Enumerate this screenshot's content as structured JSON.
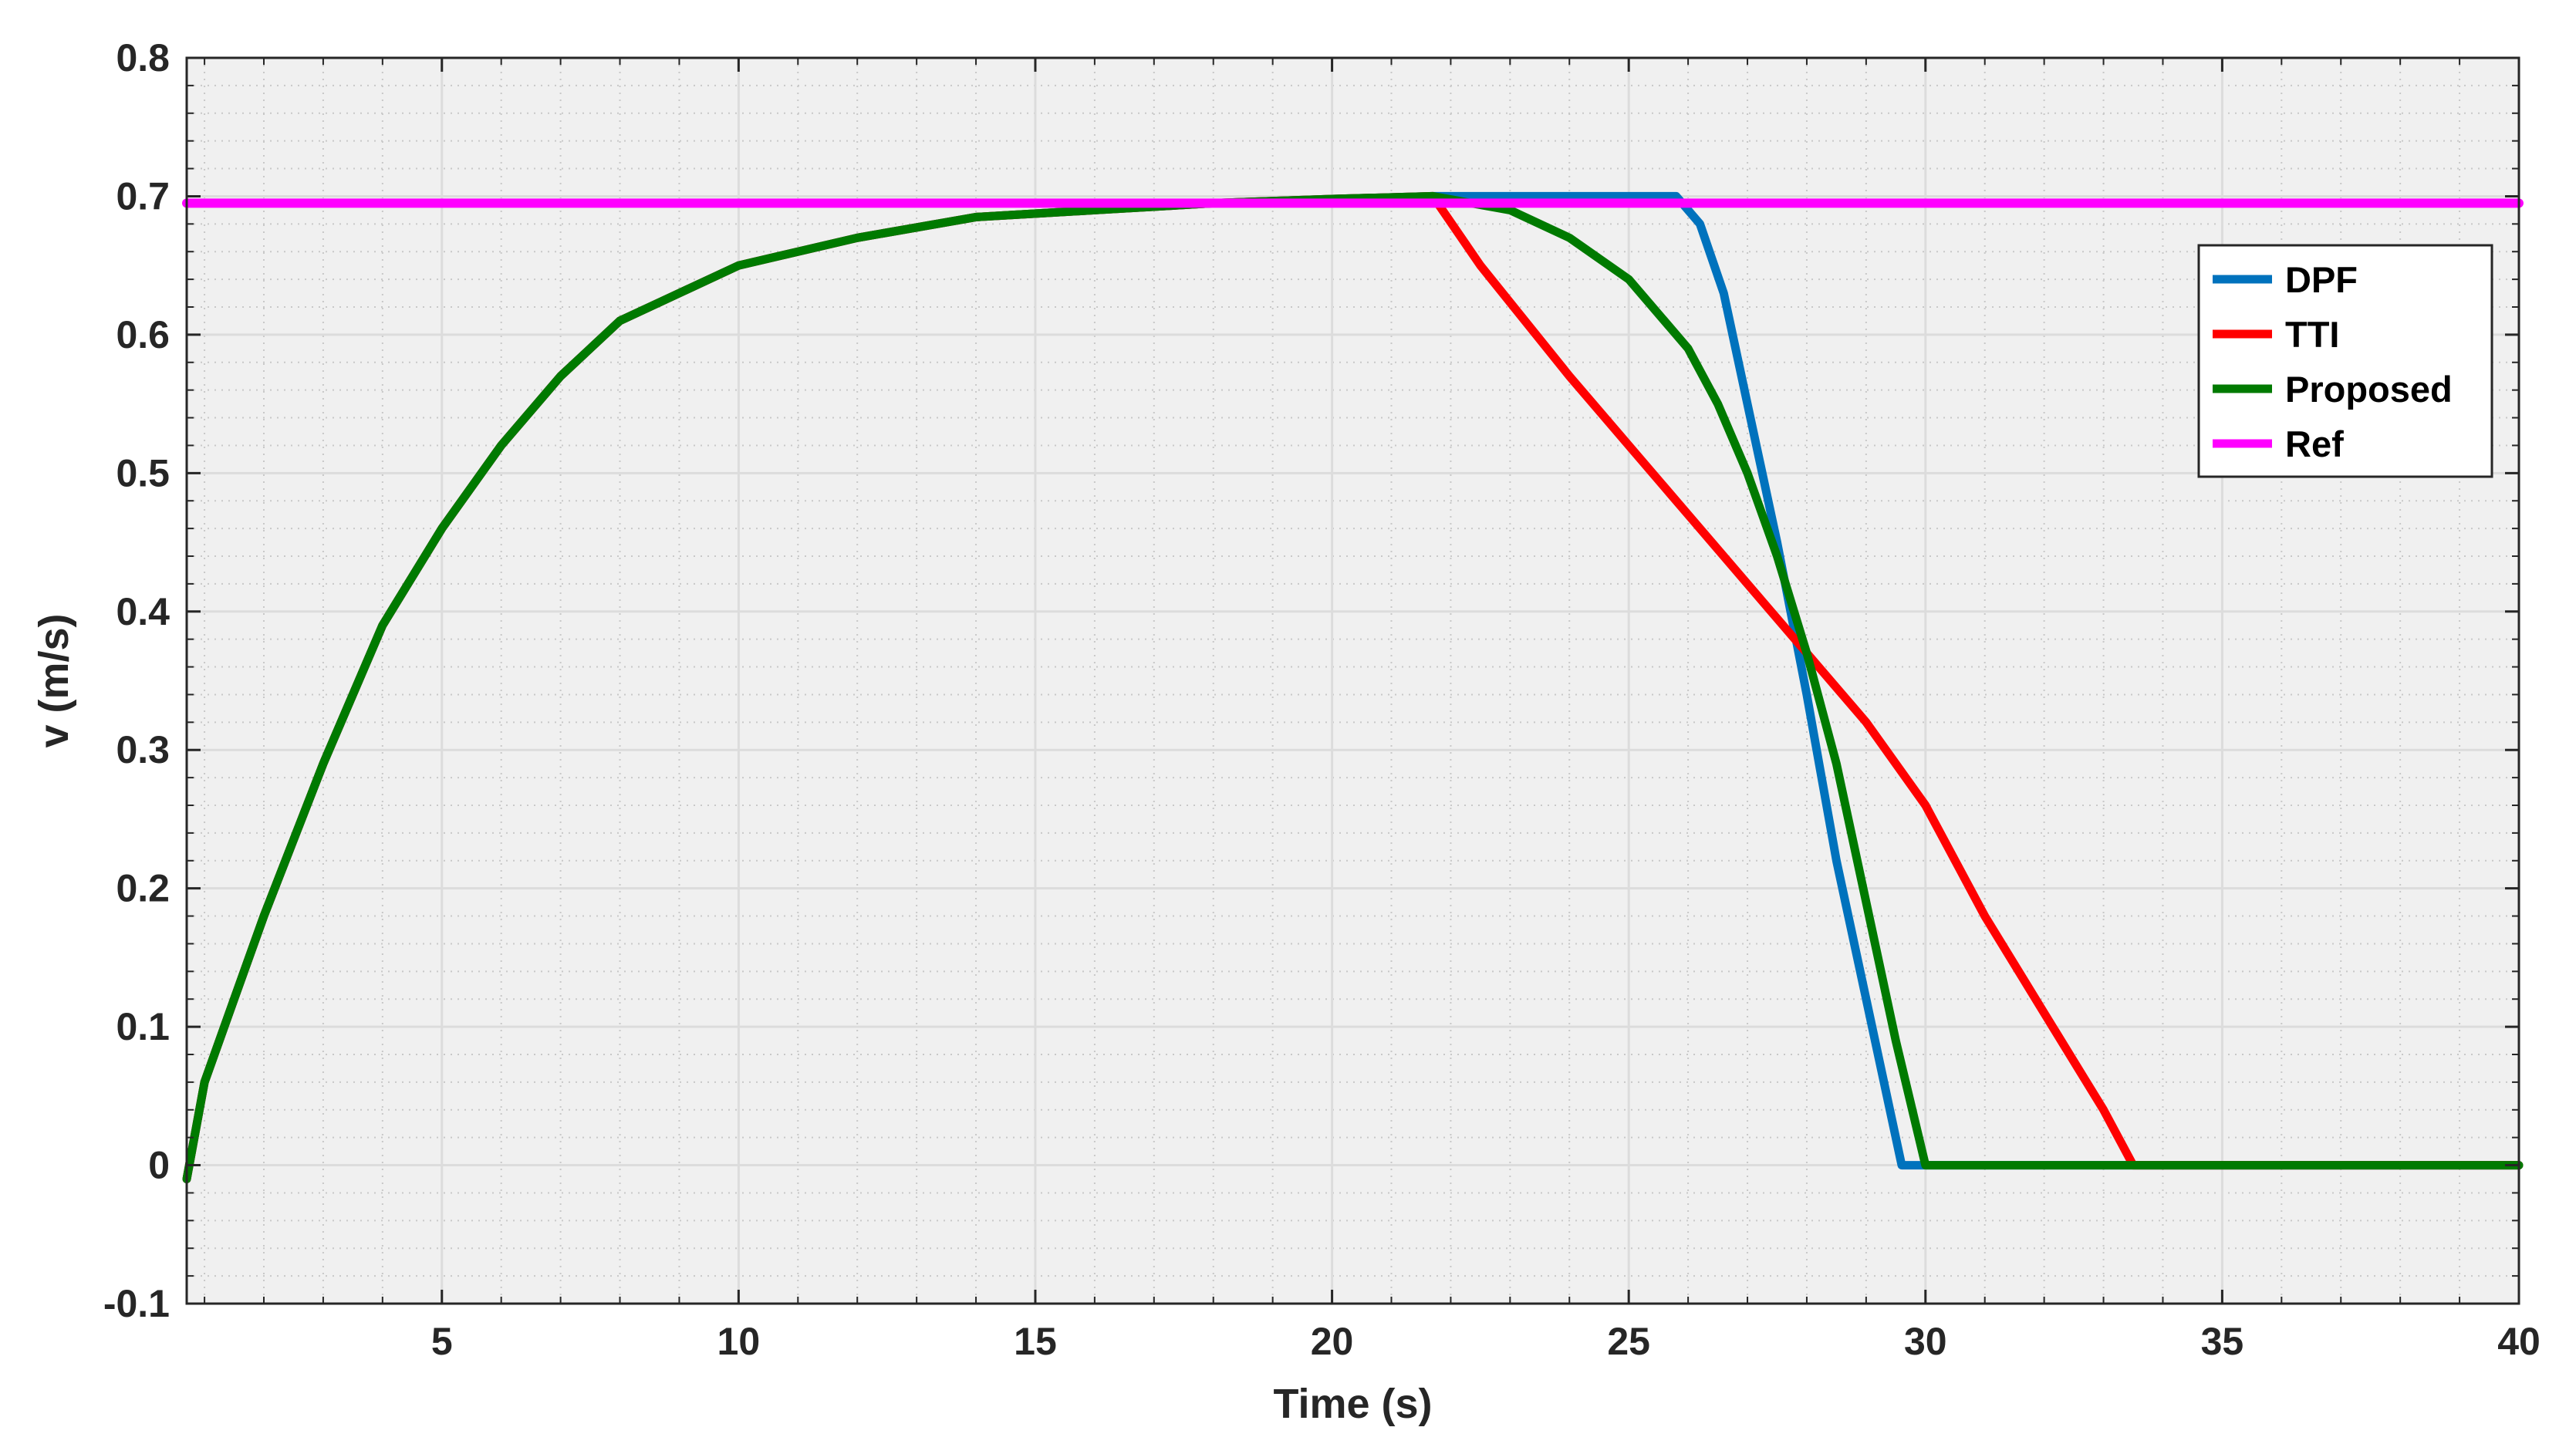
{
  "chart_data": {
    "type": "line",
    "title": "",
    "xlabel": "Time (s)",
    "ylabel": "v (m/s)",
    "xlim": [
      0.7,
      40
    ],
    "ylim": [
      -0.1,
      0.8
    ],
    "xticks": [
      5,
      10,
      15,
      20,
      25,
      30,
      35,
      40
    ],
    "xtick_labels": [
      "5",
      "10",
      "15",
      "20",
      "25",
      "30",
      "35",
      "40"
    ],
    "yticks": [
      -0.1,
      0,
      0.1,
      0.2,
      0.3,
      0.4,
      0.5,
      0.6,
      0.7,
      0.8
    ],
    "ytick_labels": [
      "-0.1",
      "0",
      "0.1",
      "0.2",
      "0.3",
      "0.4",
      "0.5",
      "0.6",
      "0.7",
      "0.8"
    ],
    "grid": true,
    "minor_grid": true,
    "legend_position": "top-right",
    "background_color": "#f0f0f0",
    "series": [
      {
        "name": "DPF",
        "color": "#0072bd",
        "x": [
          0.7,
          1,
          1.5,
          2,
          3,
          4,
          5,
          6,
          7,
          8,
          10,
          12,
          14,
          16,
          18,
          20,
          21.7,
          23,
          25,
          25.8,
          26.2,
          26.6,
          27,
          27.5,
          28,
          28.5,
          29,
          29.6,
          32,
          36,
          40
        ],
        "y": [
          -0.01,
          0.06,
          0.12,
          0.18,
          0.29,
          0.39,
          0.46,
          0.52,
          0.57,
          0.61,
          0.65,
          0.67,
          0.685,
          0.69,
          0.695,
          0.698,
          0.7,
          0.7,
          0.7,
          0.7,
          0.68,
          0.63,
          0.55,
          0.45,
          0.34,
          0.22,
          0.12,
          0.0,
          0.0,
          0.0,
          0.0
        ]
      },
      {
        "name": "TTI",
        "color": "#ff0000",
        "x": [
          0.7,
          1,
          1.5,
          2,
          3,
          4,
          5,
          6,
          7,
          8,
          10,
          12,
          14,
          16,
          18,
          20,
          21.7,
          22.5,
          24,
          26,
          28,
          29,
          30,
          31,
          32,
          33,
          33.5,
          36,
          40
        ],
        "y": [
          -0.01,
          0.06,
          0.12,
          0.18,
          0.29,
          0.39,
          0.46,
          0.52,
          0.57,
          0.61,
          0.65,
          0.67,
          0.685,
          0.69,
          0.695,
          0.698,
          0.7,
          0.65,
          0.57,
          0.47,
          0.37,
          0.32,
          0.26,
          0.18,
          0.11,
          0.04,
          0.0,
          0.0,
          0.0
        ]
      },
      {
        "name": "Proposed",
        "color": "#007a00",
        "x": [
          0.7,
          1,
          1.5,
          2,
          3,
          4,
          5,
          6,
          7,
          8,
          10,
          12,
          14,
          16,
          18,
          20,
          21.7,
          23,
          24,
          25,
          26,
          26.5,
          27,
          27.5,
          28,
          28.5,
          29,
          29.5,
          30,
          32,
          36,
          40
        ],
        "y": [
          -0.01,
          0.06,
          0.12,
          0.18,
          0.29,
          0.39,
          0.46,
          0.52,
          0.57,
          0.61,
          0.65,
          0.67,
          0.685,
          0.69,
          0.695,
          0.698,
          0.7,
          0.69,
          0.67,
          0.64,
          0.59,
          0.55,
          0.5,
          0.44,
          0.37,
          0.29,
          0.19,
          0.09,
          0.0,
          0.0,
          0.0,
          0.0
        ]
      },
      {
        "name": "Ref",
        "color": "#ff00ff",
        "x": [
          0.7,
          40
        ],
        "y": [
          0.695,
          0.695
        ]
      }
    ]
  }
}
